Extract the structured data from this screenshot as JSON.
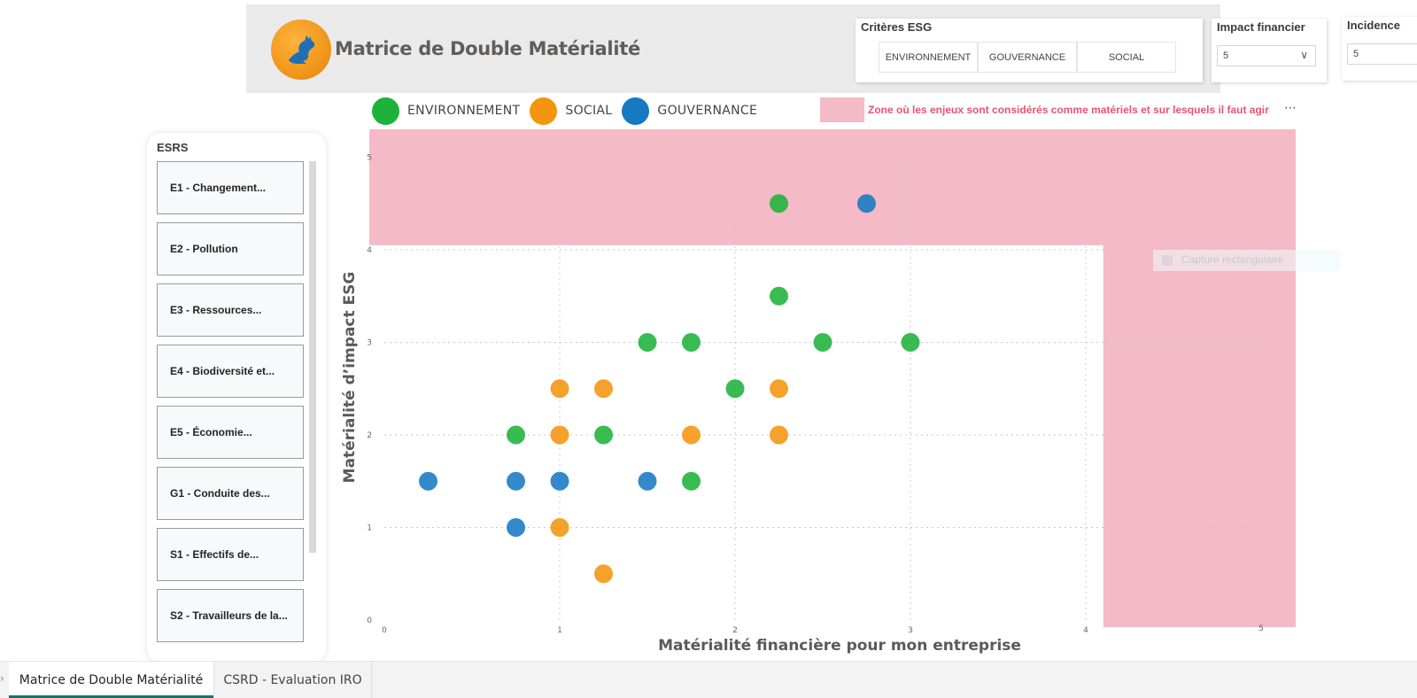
{
  "header": {
    "title": "Matrice de Double Matérialité",
    "logo_icon": "kangaroo-logo-icon"
  },
  "slicers": {
    "esg": {
      "title": "Critères ESG",
      "options": [
        "ENVIRONNEMENT",
        "GOUVERNANCE",
        "SOCIAL"
      ]
    },
    "impact_financier": {
      "title": "Impact financier",
      "value": "5"
    },
    "incidence": {
      "title": "Incidence",
      "value": "5"
    }
  },
  "legend": {
    "items": [
      {
        "label": "ENVIRONNEMENT",
        "color": "#1db33a"
      },
      {
        "label": "SOCIAL",
        "color": "#f4940f"
      },
      {
        "label": "GOUVERNANCE",
        "color": "#1779c2"
      }
    ],
    "zone_text": "Zone où les enjeux sont considérés comme matériels et sur lesquels il faut agir",
    "zone_color": "#f4bac7"
  },
  "esrs": {
    "title": "ESRS",
    "items": [
      "E1 - Changement...",
      "E2 - Pollution",
      "E3 - Ressources...",
      "E4 - Biodiversité et...",
      "E5 - Économie...",
      "G1 - Conduite des...",
      "S1 - Effectifs de...",
      "S2 - Travailleurs de la..."
    ]
  },
  "overlay": {
    "capture_label": "Capture rectangulaire"
  },
  "tabs": [
    {
      "label": "Matrice de Double Matérialité",
      "active": true
    },
    {
      "label": "CSRD - Evaluation IRO",
      "active": false
    }
  ],
  "chart_data": {
    "type": "scatter",
    "xlabel": "Matérialité financière pour mon entreprise",
    "ylabel": "Matérialité d’impact ESG",
    "xlim": [
      0,
      5
    ],
    "ylim": [
      0,
      5
    ],
    "xticks": [
      "0",
      "1",
      "2",
      "3",
      "4",
      "5"
    ],
    "yticks": [
      "0",
      "1",
      "2",
      "3",
      "4",
      "5"
    ],
    "grid": true,
    "zone": {
      "x_from": 4.1,
      "y_from": 4.05
    },
    "series": [
      {
        "name": "ENVIRONNEMENT",
        "color": "#1db33a",
        "points": [
          [
            2.25,
            4.5
          ],
          [
            2.25,
            3.5
          ],
          [
            1.5,
            3
          ],
          [
            1.75,
            3
          ],
          [
            2.5,
            3
          ],
          [
            3,
            3
          ],
          [
            2,
            2.5
          ],
          [
            0.75,
            2
          ],
          [
            1.25,
            2
          ],
          [
            1.75,
            1.5
          ]
        ]
      },
      {
        "name": "SOCIAL",
        "color": "#f4940f",
        "points": [
          [
            1,
            2.5
          ],
          [
            1.25,
            2.5
          ],
          [
            2.25,
            2.5
          ],
          [
            1,
            2
          ],
          [
            1.75,
            2
          ],
          [
            2.25,
            2
          ],
          [
            1,
            1
          ],
          [
            1.25,
            0.5
          ]
        ]
      },
      {
        "name": "GOUVERNANCE",
        "color": "#1779c2",
        "points": [
          [
            2.75,
            4.5
          ],
          [
            0.25,
            1.5
          ],
          [
            0.75,
            1.5
          ],
          [
            1,
            1.5
          ],
          [
            1.5,
            1.5
          ],
          [
            0.75,
            1
          ]
        ]
      }
    ]
  }
}
